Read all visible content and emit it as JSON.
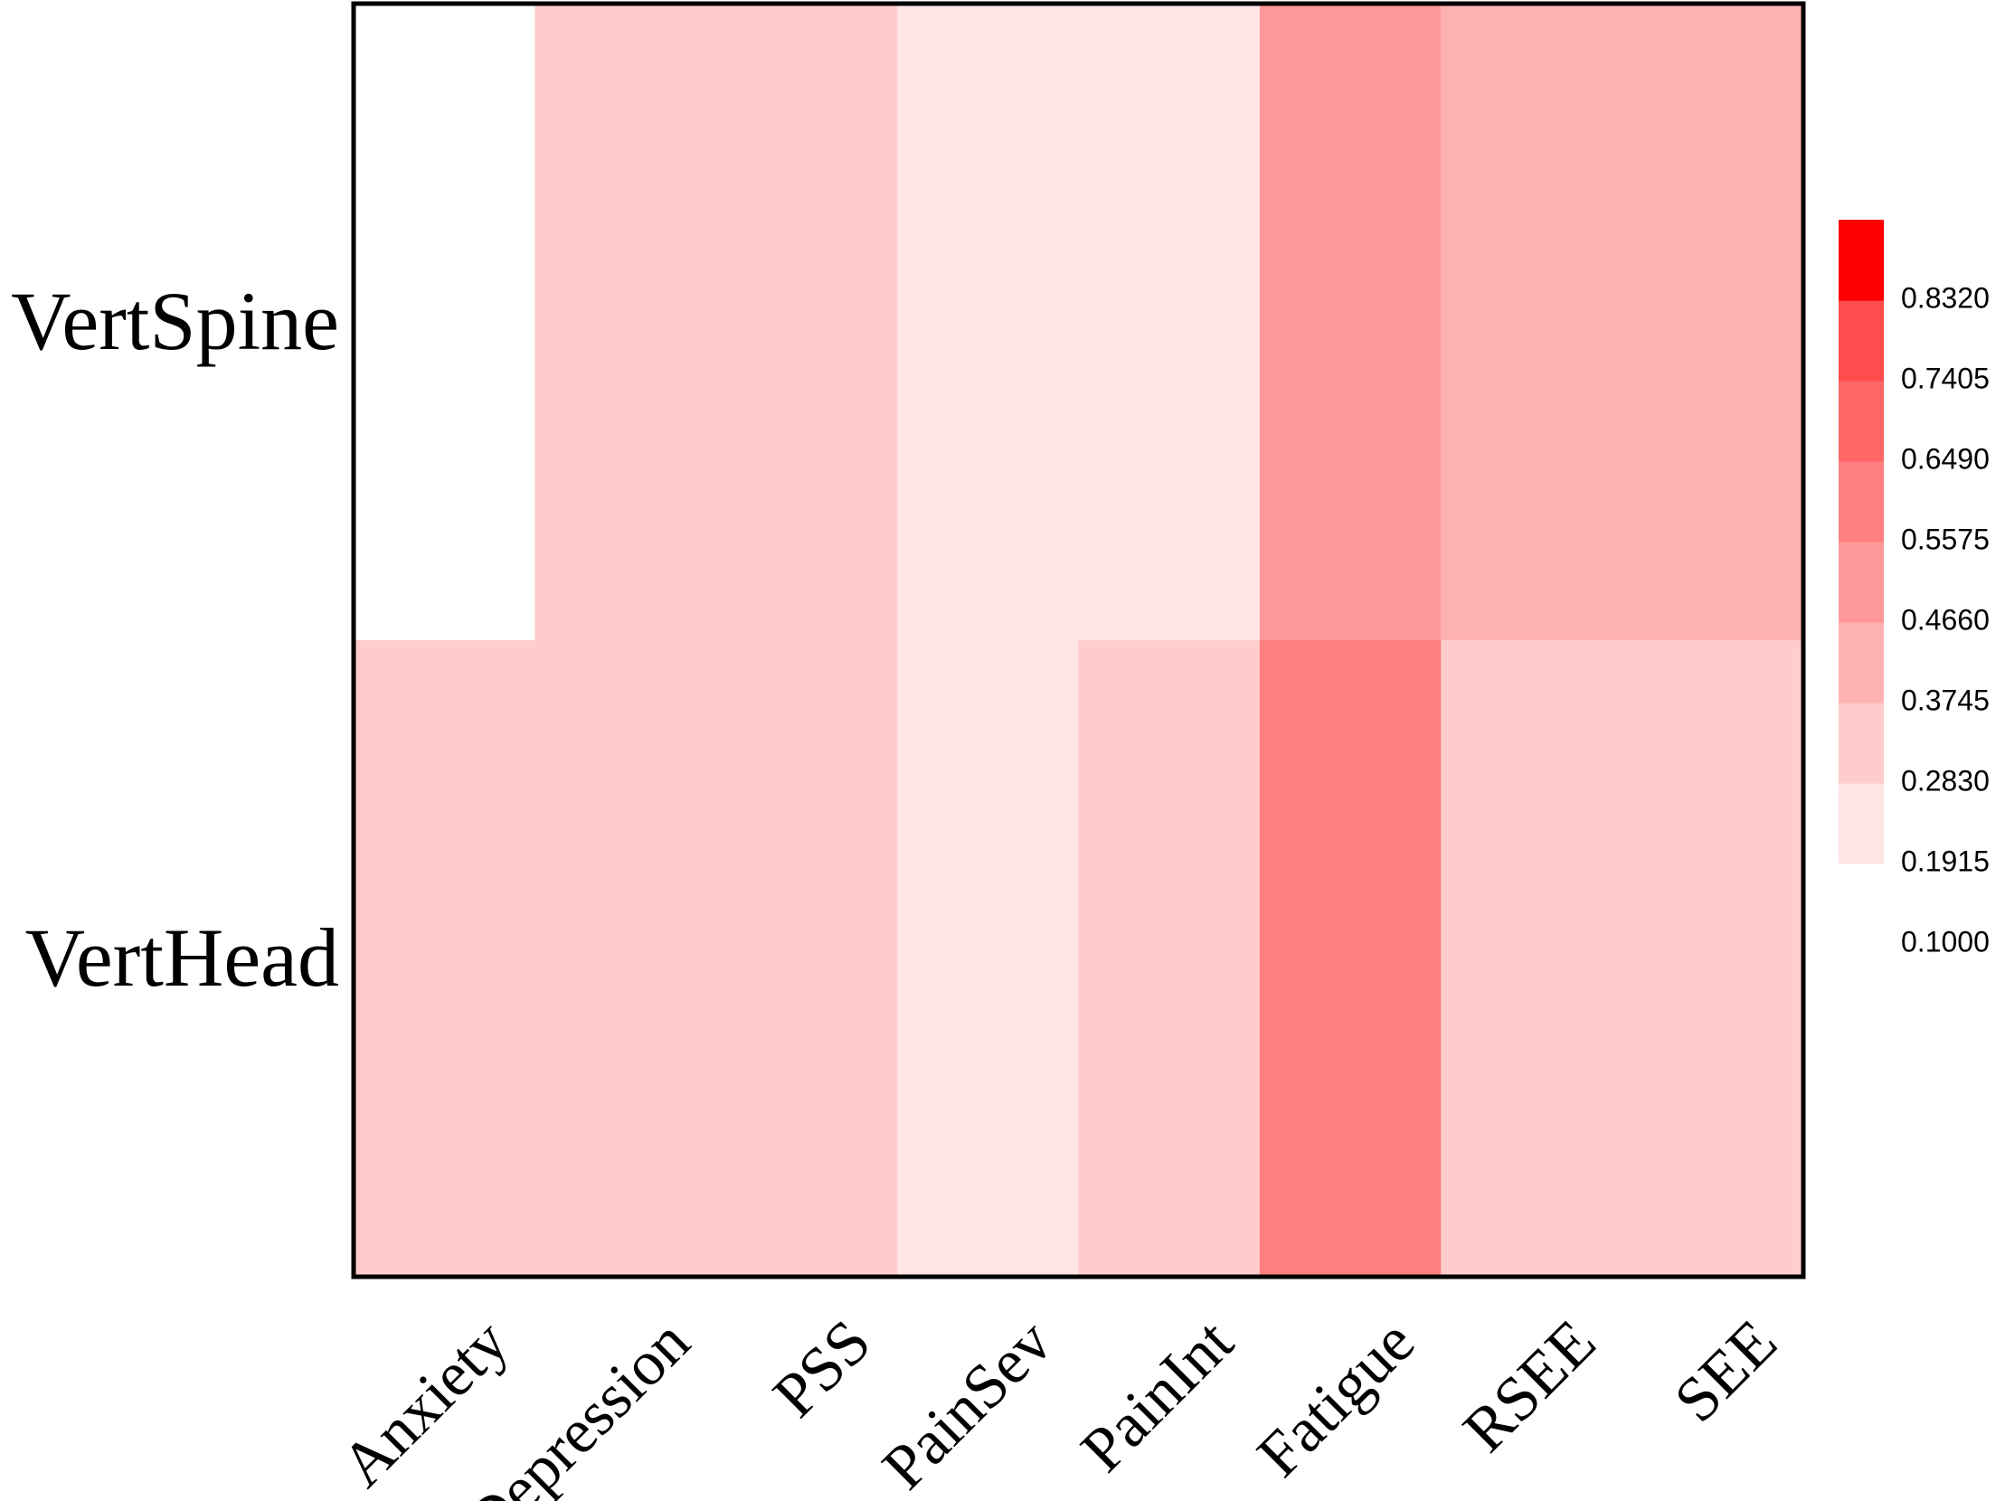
{
  "chart_data": {
    "type": "heatmap",
    "rows": [
      "VertSpine",
      "VertHead"
    ],
    "columns": [
      "Anxiety",
      "Depression",
      "PSS",
      "PainSev",
      "PainInt",
      "Fatigue",
      "RSEE",
      "SEE"
    ],
    "values": [
      [
        0.14,
        0.33,
        0.33,
        0.24,
        0.24,
        0.51,
        0.42,
        0.42
      ],
      [
        0.33,
        0.33,
        0.33,
        0.24,
        0.33,
        0.61,
        0.33,
        0.33
      ]
    ],
    "legend": {
      "breaks": [
        0.1,
        0.1915,
        0.283,
        0.3745,
        0.466,
        0.5575,
        0.649,
        0.7405,
        0.832,
        0.9235
      ],
      "tick_labels": [
        "0.8320",
        "0.7405",
        "0.6490",
        "0.5575",
        "0.4660",
        "0.3745",
        "0.2830",
        "0.1915",
        "0.1000"
      ],
      "colors": [
        "#ffffff",
        "#ffe5e5",
        "#ffcccc",
        "#ffb2b2",
        "#ff9999",
        "#ff7f7f",
        "#ff6666",
        "#ff4c4c",
        "#ff0000"
      ],
      "placement": "right"
    }
  }
}
